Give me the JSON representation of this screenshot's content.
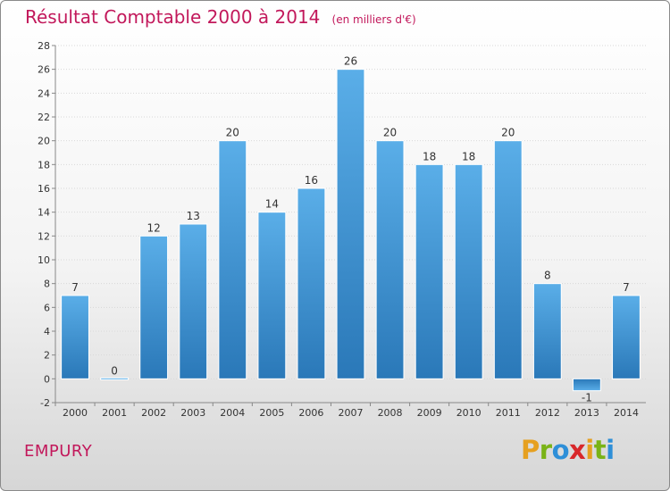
{
  "header": {
    "title": "Résultat Comptable 2000 à 2014",
    "unit": "(en milliers d'€)"
  },
  "commune": "EMPURY",
  "logo": {
    "text": "Proxiti",
    "letters": [
      {
        "char": "P",
        "color": "#e6a020"
      },
      {
        "char": "r",
        "color": "#7ab317"
      },
      {
        "char": "o",
        "color": "#2e8fd8"
      },
      {
        "char": "x",
        "color": "#d8282b"
      },
      {
        "char": "i",
        "color": "#e6a020"
      },
      {
        "char": "t",
        "color": "#7ab317"
      },
      {
        "char": "i",
        "color": "#2e8fd8"
      }
    ]
  },
  "chart_data": {
    "type": "bar",
    "title": "Résultat Comptable 2000 à 2014",
    "categories": [
      "2000",
      "2001",
      "2002",
      "2003",
      "2004",
      "2005",
      "2006",
      "2007",
      "2008",
      "2009",
      "2010",
      "2011",
      "2012",
      "2013",
      "2014"
    ],
    "values": [
      7,
      0,
      12,
      13,
      20,
      14,
      16,
      26,
      20,
      18,
      18,
      20,
      8,
      -1,
      7
    ],
    "ylim": [
      -2,
      28
    ],
    "yticks": [
      -2,
      0,
      2,
      4,
      6,
      8,
      10,
      12,
      14,
      16,
      18,
      20,
      22,
      24,
      26,
      28
    ],
    "grid": true,
    "bar_color_top": "#5aaee8",
    "bar_color_bottom": "#2a78b8"
  }
}
